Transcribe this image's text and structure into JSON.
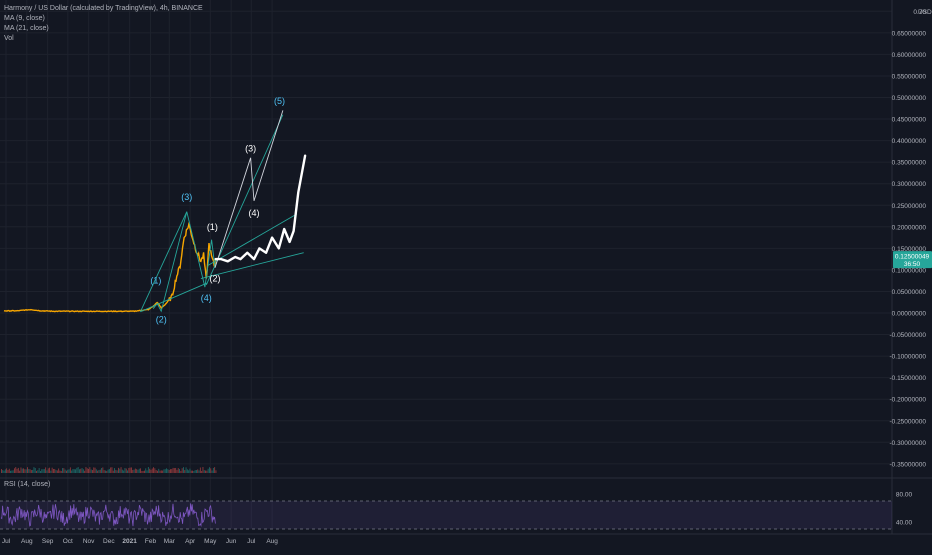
{
  "legend": {
    "title": "Harmony / US Dollar (calculated by TradingView), 4h, BINANCE",
    "ma9": "MA (9, close)",
    "ma21": "MA (21, close)",
    "vol": "Vol"
  },
  "rsi_label": "RSI (14, close)",
  "currency": "USD",
  "price_tag": {
    "value": "0.12500049",
    "timer": "36:50"
  },
  "colors": {
    "background": "#131722",
    "price": "#f7a600",
    "wave": "#26a69a",
    "projection": "#ffffff",
    "rsi": "#7e57c2",
    "price_tag": "#26a69a"
  },
  "chart_data": [
    {
      "type": "line",
      "title": "Harmony / US Dollar (calculated by TradingView), 4h, BINANCE",
      "x_ticks": [
        "Jul",
        "Aug",
        "Sep",
        "Oct",
        "Nov",
        "Dec",
        "2021",
        "Feb",
        "Mar",
        "Apr",
        "May",
        "Jun",
        "Jul",
        "Aug"
      ],
      "y_ticks": [
        "0.70",
        "0.65000000",
        "0.60000000",
        "0.55000000",
        "0.50000000",
        "0.45000000",
        "0.40000000",
        "0.35000000",
        "0.30000000",
        "0.25000000",
        "0.20000000",
        "0.15000000",
        "0.10000000",
        "0.05000000",
        "0.00000000",
        "-0.05000000",
        "-0.10000000",
        "-0.15000000",
        "-0.20000000",
        "-0.25000000",
        "-0.30000000",
        "-0.35000000"
      ],
      "ylim": [
        -0.35,
        0.7
      ],
      "grid": true,
      "series": [
        {
          "style": "price",
          "x": [
            "2020-07-01",
            "2020-07-20",
            "2020-08-10",
            "2020-08-25",
            "2020-09-15",
            "2020-10-15",
            "2020-11-15",
            "2020-12-15",
            "2021-01-10",
            "2021-02-01",
            "2021-02-10",
            "2021-02-14",
            "2021-02-20",
            "2021-02-26",
            "2021-03-08",
            "2021-03-14",
            "2021-03-20",
            "2021-03-26",
            "2021-04-02",
            "2021-04-12",
            "2021-04-20",
            "2021-04-24",
            "2021-04-28",
            "2021-05-02",
            "2021-05-06",
            "2021-05-10",
            "2021-05-12"
          ],
          "y": [
            0.005,
            0.005,
            0.008,
            0.005,
            0.004,
            0.004,
            0.004,
            0.004,
            0.004,
            0.008,
            0.018,
            0.025,
            0.012,
            0.02,
            0.038,
            0.08,
            0.11,
            0.175,
            0.205,
            0.15,
            0.12,
            0.135,
            0.075,
            0.16,
            0.13,
            0.11,
            0.125
          ]
        }
      ],
      "wave_labels": [
        {
          "text": "(1)",
          "x": "2021-02-12",
          "y": 0.068
        },
        {
          "text": "(2)",
          "x": "2021-02-20",
          "y": -0.022
        },
        {
          "text": "(3)",
          "x": "2021-03-30",
          "y": 0.262
        },
        {
          "text": "(4)",
          "x": "2021-04-28",
          "y": 0.028
        },
        {
          "text": "(1)",
          "x": "2021-05-07",
          "y": 0.193
        },
        {
          "text": "(2)",
          "x": "2021-05-11",
          "y": 0.073
        },
        {
          "text": "(3)",
          "x": "2021-07-03",
          "y": 0.375
        },
        {
          "text": "(4)",
          "x": "2021-07-08",
          "y": 0.225
        },
        {
          "text": "(5)",
          "x": "2021-08-15",
          "y": 0.485
        }
      ],
      "projection": {
        "x": [
          "2021-05-12",
          "2021-05-20",
          "2021-05-30",
          "2021-06-10",
          "2021-06-18",
          "2021-06-28",
          "2021-07-08",
          "2021-07-16",
          "2021-07-26",
          "2021-08-04",
          "2021-08-14",
          "2021-08-22",
          "2021-08-30",
          "2021-09-05",
          "2021-09-12",
          "2021-09-22"
        ],
        "y": [
          0.125,
          0.125,
          0.12,
          0.13,
          0.125,
          0.14,
          0.125,
          0.15,
          0.14,
          0.175,
          0.15,
          0.195,
          0.165,
          0.19,
          0.28,
          0.365
        ]
      }
    },
    {
      "type": "line",
      "title": "RSI (14, close)",
      "y_ticks": [
        "80.00",
        "40.00"
      ],
      "ylim": [
        20,
        90
      ],
      "bands": [
        70,
        30
      ]
    }
  ]
}
